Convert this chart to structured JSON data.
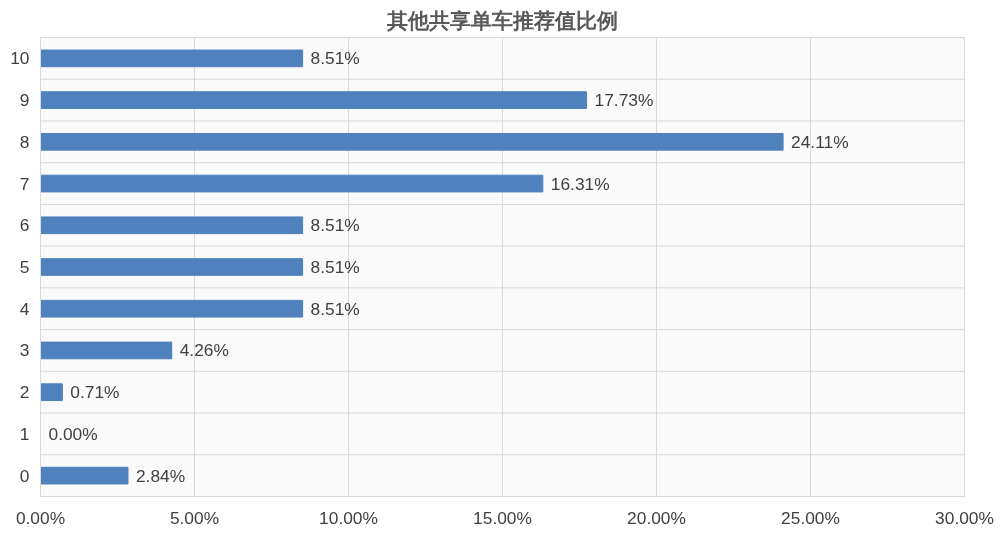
{
  "chart_data": {
    "type": "bar",
    "orientation": "horizontal",
    "title": "其他共享单车推荐值比例",
    "categories": [
      "10",
      "9",
      "8",
      "7",
      "6",
      "5",
      "4",
      "3",
      "2",
      "1",
      "0"
    ],
    "values": [
      8.51,
      17.73,
      24.11,
      16.31,
      8.51,
      8.51,
      8.51,
      4.26,
      0.71,
      0.0,
      2.84
    ],
    "value_labels": [
      "8.51%",
      "17.73%",
      "24.11%",
      "16.31%",
      "8.51%",
      "8.51%",
      "8.51%",
      "4.26%",
      "0.71%",
      "0.00%",
      "2.84%"
    ],
    "color": "#4f81bd",
    "xlim": [
      0,
      30
    ],
    "xticks": [
      {
        "value": 0,
        "label": "0.00%"
      },
      {
        "value": 5,
        "label": "5.00%"
      },
      {
        "value": 10,
        "label": "10.00%"
      },
      {
        "value": 15,
        "label": "15.00%"
      },
      {
        "value": 20,
        "label": "20.00%"
      },
      {
        "value": 25,
        "label": "25.00%"
      },
      {
        "value": 30,
        "label": "30.00%"
      }
    ],
    "grid": true
  }
}
